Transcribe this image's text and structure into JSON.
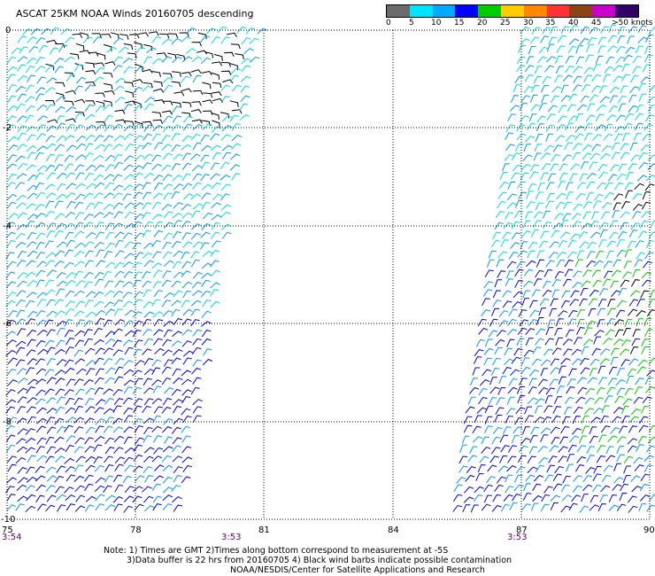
{
  "title": "ASCAT 25KM NOAA Winds 20160705 descending",
  "legend": {
    "ticks": [
      "0",
      "5",
      "10",
      "15",
      "20",
      "25",
      "30",
      "35",
      "40",
      "45",
      ">50 knots"
    ],
    "colors": [
      "#6b6b6b",
      "#00e5ff",
      "#00aaff",
      "#0000ff",
      "#00cc00",
      "#ffcc00",
      "#ff8800",
      "#ff3333",
      "#8b4513",
      "#cc00cc",
      "#330066"
    ]
  },
  "axes": {
    "x_ticks": [
      "75",
      "78",
      "81",
      "84",
      "87",
      "90"
    ],
    "y_ticks": [
      "0",
      "-2",
      "-4",
      "-6",
      "-8",
      "-10"
    ]
  },
  "pass_times": [
    "3:54",
    "3:53",
    "3:53"
  ],
  "notes": [
    "Note: 1) Times are GMT 2)Times along bottom correspond to measurement at -5S",
    "3)Data buffer is 22 hrs from 20160705 4) Black wind barbs indicate possible contamination",
    "NOAA/NESDIS/Center for Satellite Applications and Research"
  ],
  "barb_palette": {
    "contaminated": "#000000",
    "light": "#00dddd",
    "medium": "#0099ff",
    "strong": "#0000ee",
    "green": "#00cc00"
  }
}
